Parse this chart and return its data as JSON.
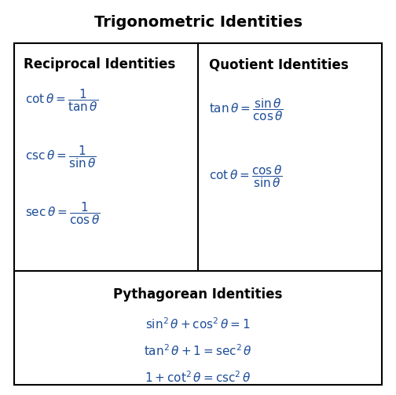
{
  "title": "Trigonometric Identities",
  "title_fontsize": 14,
  "background_color": "#ffffff",
  "text_color": "#000000",
  "blue_color": "#1F4E99",
  "section_header_fontsize": 12,
  "formula_fontsize": 11,
  "sections": {
    "reciprocal": {
      "header": "Reciprocal Identities",
      "formulas": [
        "\\cot \\theta = \\dfrac{1}{\\tan \\theta}",
        "\\csc \\theta = \\dfrac{1}{\\sin \\theta}",
        "\\sec \\theta = \\dfrac{1}{\\cos \\theta}"
      ]
    },
    "quotient": {
      "header": "Quotient Identities",
      "formulas": [
        "\\tan \\theta = \\dfrac{\\sin \\theta}{\\cos \\theta}",
        "\\cot \\theta = \\dfrac{\\cos \\theta}{\\sin \\theta}"
      ]
    },
    "pythagorean": {
      "header": "Pythagorean Identities",
      "formulas": [
        "\\sin^2 \\theta + \\cos^2 \\theta = 1",
        "\\tan^2 \\theta + 1 = \\sec^2 \\theta",
        "1 + \\cot^2 \\theta = \\csc^2 \\theta"
      ]
    }
  }
}
